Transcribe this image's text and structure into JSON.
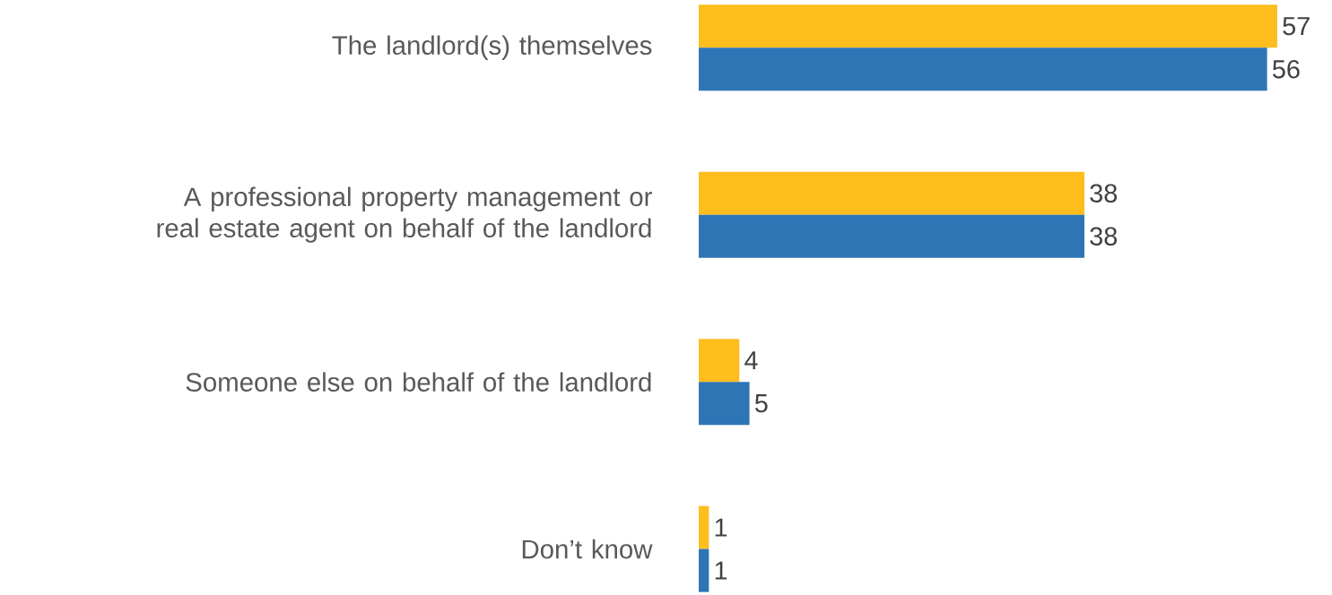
{
  "chart_data": {
    "type": "bar",
    "orientation": "horizontal",
    "data_labels": true,
    "categories": [
      "The landlord(s) themselves",
      "A professional property management or real estate agent on behalf of the landlord",
      "Someone else on behalf of the landlord",
      "Don’t know"
    ],
    "series": [
      {
        "color": "#fdbe1e",
        "values": [
          57,
          38,
          4,
          1
        ]
      },
      {
        "color": "#2e75b6",
        "values": [
          56,
          38,
          5,
          1
        ]
      }
    ]
  }
}
